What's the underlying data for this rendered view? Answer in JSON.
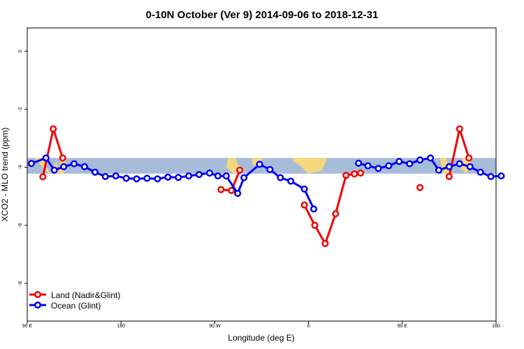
{
  "chart_data": {
    "type": "line",
    "title": "0-10N October (Ver 9)   2014-09-06 to 2018-12-31",
    "xlabel": "Longitude (deg E)",
    "ylabel": "XCO2 - MLO trend (ppm)",
    "xlim": [
      90,
      540
    ],
    "ylim": [
      -9.3,
      0.8
    ],
    "x_ticks": [
      {
        "value": 90,
        "label": "90 E"
      },
      {
        "value": 180,
        "label": "180"
      },
      {
        "value": 270,
        "label": "90 W"
      },
      {
        "value": 360,
        "label": "0"
      },
      {
        "value": 450,
        "label": "90 E"
      },
      {
        "value": 540,
        "label": "180"
      }
    ],
    "y_ticks": [
      {
        "value": 0,
        "label": "0"
      },
      {
        "value": -2,
        "label": "-2"
      },
      {
        "value": -4,
        "label": "-4"
      },
      {
        "value": -6,
        "label": "-6"
      },
      {
        "value": -8,
        "label": "-8"
      }
    ],
    "map_band": {
      "latitude_range": "0-10N",
      "y_top": -3.68,
      "y_bottom": -4.22,
      "ocean_color": "#a7bcd9",
      "land_color": "#f5d77d"
    },
    "legend": {
      "placement": "bottom-left"
    },
    "series": [
      {
        "name": "Land (Nadir&Glint)",
        "color": "#ee0000",
        "segments": [
          [
            [
              105,
              -4.33
            ],
            [
              115,
              -2.68
            ],
            [
              124,
              -3.68
            ]
          ],
          [
            [
              276,
              -4.77
            ],
            [
              286,
              -4.8
            ],
            [
              294,
              -4.1
            ]
          ],
          [
            [
              356,
              -5.3
            ],
            [
              366,
              -6.0
            ],
            [
              376,
              -6.63
            ],
            [
              386,
              -5.6
            ],
            [
              396,
              -4.28
            ],
            [
              404,
              -4.23
            ],
            [
              410,
              -4.2
            ]
          ],
          [
            [
              467,
              -4.7
            ]
          ],
          [
            [
              495,
              -4.32
            ],
            [
              505,
              -2.68
            ],
            [
              514,
              -3.68
            ]
          ]
        ]
      },
      {
        "name": "Ocean (Glint)",
        "color": "#0000ee",
        "segments": [
          [
            [
              94,
              -3.87
            ],
            [
              108,
              -3.68
            ],
            [
              116,
              -4.1
            ],
            [
              125,
              -3.98
            ],
            [
              135,
              -3.88
            ],
            [
              145,
              -3.98
            ],
            [
              155,
              -4.17
            ],
            [
              165,
              -4.32
            ],
            [
              175,
              -4.3
            ],
            [
              185,
              -4.38
            ],
            [
              195,
              -4.4
            ],
            [
              205,
              -4.38
            ],
            [
              215,
              -4.4
            ],
            [
              225,
              -4.34
            ],
            [
              235,
              -4.35
            ],
            [
              245,
              -4.3
            ],
            [
              255,
              -4.25
            ],
            [
              265,
              -4.2
            ],
            [
              273,
              -4.3
            ],
            [
              281,
              -4.3
            ],
            [
              292,
              -4.9
            ],
            [
              298,
              -4.36
            ],
            [
              313,
              -3.9
            ],
            [
              323,
              -4.08
            ],
            [
              333,
              -4.36
            ],
            [
              343,
              -4.48
            ],
            [
              356,
              -4.75
            ],
            [
              365,
              -5.44
            ]
          ],
          [
            [
              408,
              -3.86
            ],
            [
              417,
              -3.95
            ],
            [
              427,
              -4.04
            ],
            [
              437,
              -3.95
            ],
            [
              447,
              -3.8
            ],
            [
              457,
              -3.88
            ],
            [
              467,
              -3.75
            ],
            [
              477,
              -3.68
            ],
            [
              485,
              -4.1
            ],
            [
              495,
              -3.98
            ],
            [
              505,
              -3.88
            ],
            [
              515,
              -3.98
            ],
            [
              525,
              -4.17
            ],
            [
              535,
              -4.32
            ],
            [
              545,
              -4.3
            ]
          ]
        ]
      }
    ]
  }
}
